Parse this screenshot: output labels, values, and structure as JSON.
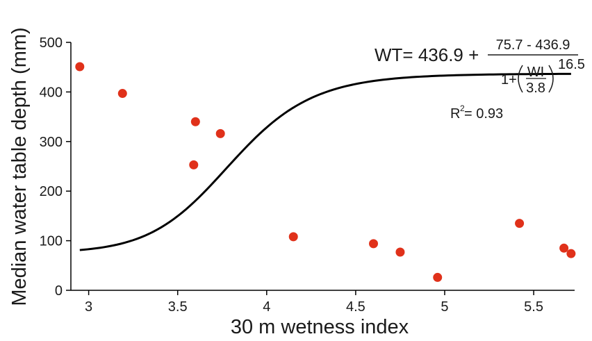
{
  "chart_data": {
    "type": "scatter",
    "xlabel": "30 m wetness index",
    "ylabel": "Median water table depth (mm)",
    "xlim": [
      2.9,
      5.73
    ],
    "ylim": [
      0,
      500
    ],
    "x_ticks": [
      "3",
      "3.5",
      "4",
      "4.5",
      "5",
      "5.5"
    ],
    "y_ticks": [
      "0",
      "100",
      "200",
      "300",
      "400",
      "500"
    ],
    "grid": false,
    "point_color": "#e0311a",
    "line_color": "#000000",
    "points": [
      {
        "x": 2.95,
        "y": 451
      },
      {
        "x": 3.19,
        "y": 397
      },
      {
        "x": 3.59,
        "y": 253
      },
      {
        "x": 3.6,
        "y": 340
      },
      {
        "x": 3.74,
        "y": 316
      },
      {
        "x": 4.15,
        "y": 108
      },
      {
        "x": 4.6,
        "y": 94
      },
      {
        "x": 4.75,
        "y": 77
      },
      {
        "x": 4.96,
        "y": 26
      },
      {
        "x": 5.42,
        "y": 135
      },
      {
        "x": 5.67,
        "y": 85
      },
      {
        "x": 5.71,
        "y": 74
      }
    ],
    "fit": {
      "type": "logistic",
      "top": 436.9,
      "bottom": 75.7,
      "center": 3.8,
      "power": 16.5,
      "x_range": [
        2.95,
        5.71
      ]
    },
    "equation": {
      "lhs": "WT= 436.9 +",
      "numerator": "75.7 - 436.9",
      "den_prefix": "1+",
      "inner_num": "WI",
      "inner_den": "3.8",
      "exponent": "16.5"
    },
    "r_squared": {
      "label": "R",
      "sup": "2",
      "value": " = 0.93"
    }
  }
}
